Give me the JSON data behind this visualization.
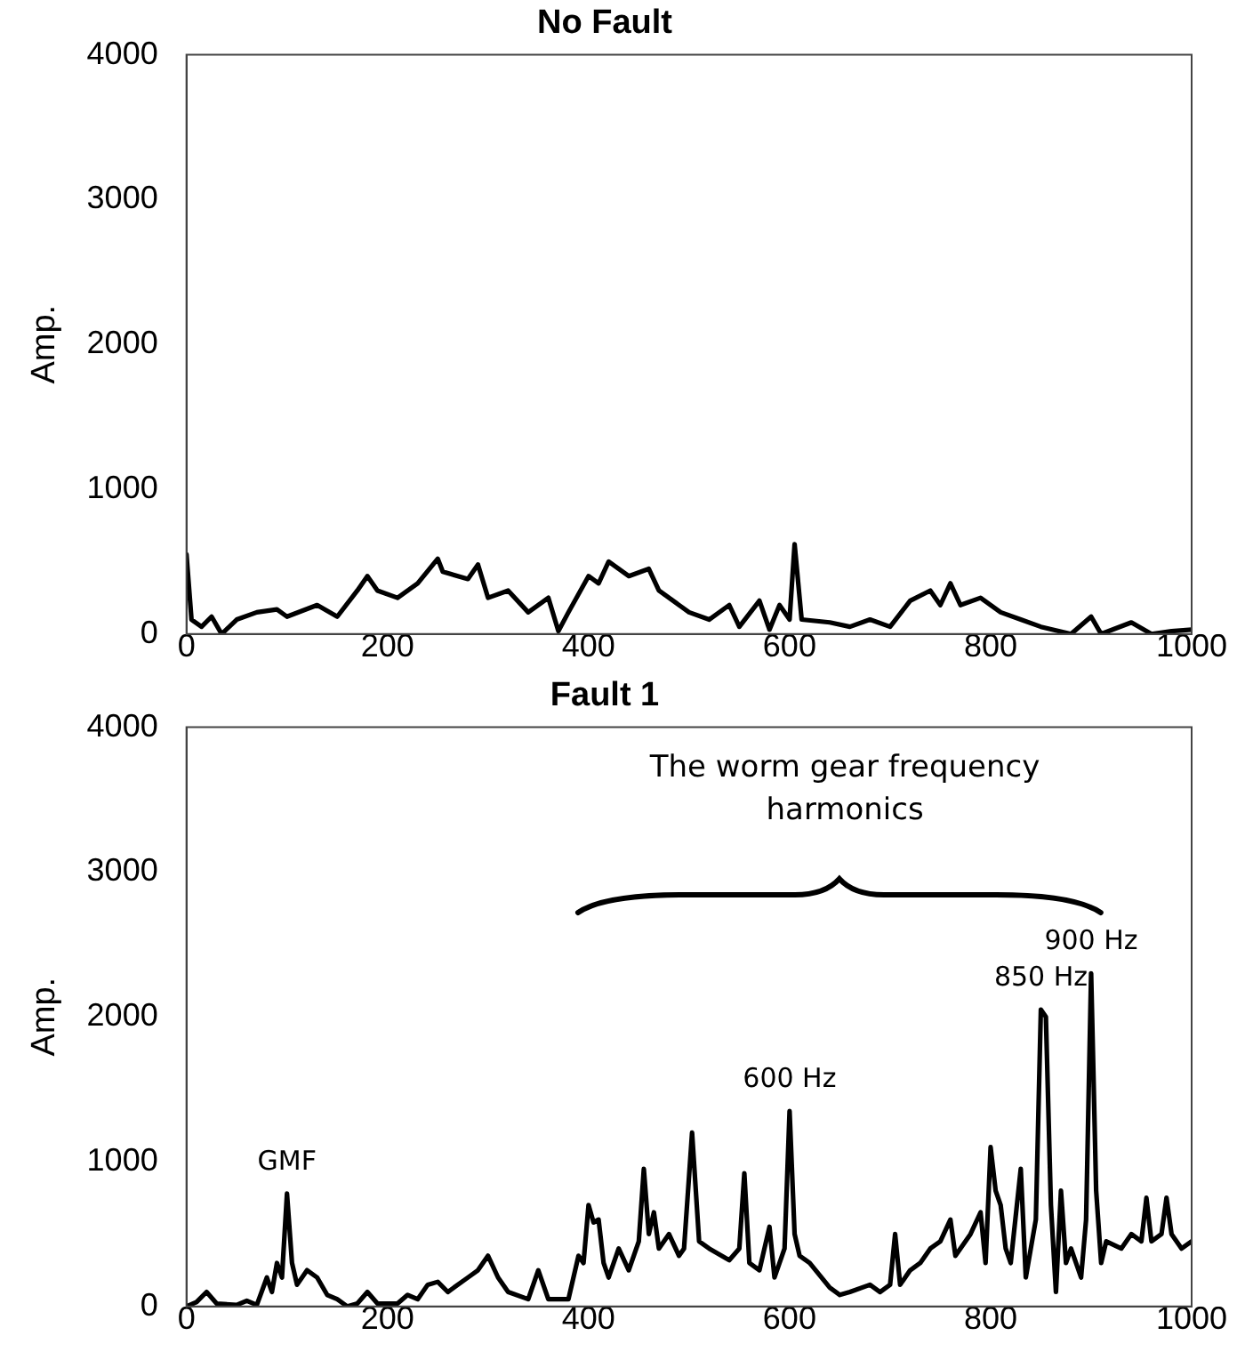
{
  "chart_data": [
    {
      "type": "line",
      "title": "No Fault",
      "ylabel": "Amp.",
      "xlim": [
        0,
        1000
      ],
      "xticks": [
        0,
        200,
        400,
        600,
        800,
        1000
      ],
      "ylim": [
        0,
        4000
      ],
      "yticks": [
        0,
        1000,
        2000,
        3000,
        4000
      ],
      "grid": false,
      "legend": false,
      "marker": "none",
      "line_style": "solid",
      "series": [
        {
          "color": "#000000",
          "x": [
            0,
            5,
            15,
            25,
            35,
            50,
            70,
            90,
            100,
            130,
            150,
            170,
            180,
            190,
            210,
            230,
            250,
            255,
            280,
            290,
            300,
            320,
            340,
            360,
            370,
            380,
            400,
            410,
            420,
            440,
            460,
            470,
            500,
            520,
            540,
            550,
            570,
            580,
            590,
            600,
            605,
            612,
            640,
            660,
            680,
            700,
            720,
            740,
            750,
            760,
            770,
            790,
            810,
            830,
            850,
            880,
            900,
            910,
            940,
            960,
            980,
            1000
          ],
          "values": [
            550,
            100,
            50,
            120,
            0,
            100,
            150,
            170,
            120,
            200,
            120,
            300,
            400,
            300,
            250,
            350,
            520,
            430,
            380,
            480,
            250,
            300,
            150,
            250,
            20,
            150,
            400,
            350,
            500,
            400,
            450,
            300,
            150,
            100,
            200,
            50,
            230,
            30,
            200,
            100,
            620,
            100,
            80,
            50,
            100,
            50,
            230,
            300,
            200,
            350,
            200,
            250,
            150,
            100,
            50,
            0,
            120,
            0,
            80,
            0,
            20,
            30
          ]
        }
      ]
    },
    {
      "type": "line",
      "title": "Fault 1",
      "ylabel": "Amp.",
      "xlim": [
        0,
        1000
      ],
      "xticks": [
        0,
        200,
        400,
        600,
        800,
        1000
      ],
      "ylim": [
        0,
        4000
      ],
      "yticks": [
        0,
        1000,
        2000,
        3000,
        4000
      ],
      "grid": false,
      "legend": false,
      "marker": "none",
      "line_style": "solid",
      "annotations": [
        "The worm gear frequency harmonics",
        {
          "text": "GMF",
          "x": 100,
          "y": 780
        },
        {
          "text": "600 Hz",
          "x": 600,
          "y": 1350
        },
        {
          "text": "850 Hz",
          "x": 850,
          "y": 2050
        },
        {
          "text": "900 Hz",
          "x": 900,
          "y": 2300
        }
      ],
      "series": [
        {
          "color": "#000000",
          "x": [
            0,
            10,
            20,
            30,
            50,
            60,
            70,
            80,
            85,
            90,
            95,
            100,
            105,
            110,
            120,
            130,
            140,
            150,
            160,
            170,
            180,
            190,
            210,
            220,
            230,
            240,
            250,
            260,
            280,
            290,
            300,
            310,
            320,
            340,
            350,
            360,
            380,
            390,
            395,
            400,
            405,
            410,
            415,
            420,
            430,
            440,
            450,
            455,
            460,
            465,
            470,
            480,
            490,
            495,
            503,
            510,
            520,
            540,
            550,
            555,
            560,
            570,
            580,
            585,
            595,
            600,
            605,
            610,
            620,
            640,
            650,
            660,
            680,
            690,
            700,
            705,
            710,
            720,
            730,
            740,
            750,
            760,
            765,
            780,
            790,
            795,
            800,
            805,
            810,
            815,
            820,
            830,
            835,
            840,
            845,
            850,
            855,
            860,
            865,
            870,
            875,
            880,
            890,
            895,
            900,
            905,
            910,
            915,
            930,
            940,
            950,
            955,
            960,
            970,
            975,
            980,
            990,
            1000
          ],
          "values": [
            0,
            30,
            100,
            20,
            10,
            40,
            10,
            200,
            100,
            300,
            200,
            780,
            300,
            150,
            250,
            200,
            80,
            50,
            0,
            20,
            100,
            20,
            20,
            80,
            50,
            150,
            170,
            100,
            200,
            250,
            350,
            200,
            100,
            50,
            250,
            50,
            50,
            350,
            300,
            700,
            580,
            600,
            300,
            200,
            400,
            250,
            450,
            950,
            500,
            650,
            400,
            500,
            350,
            400,
            1200,
            450,
            400,
            320,
            400,
            920,
            300,
            250,
            550,
            200,
            400,
            1350,
            500,
            350,
            300,
            130,
            80,
            100,
            150,
            100,
            150,
            500,
            150,
            250,
            300,
            400,
            450,
            600,
            350,
            500,
            650,
            300,
            1100,
            800,
            700,
            400,
            300,
            950,
            200,
            400,
            600,
            2050,
            2000,
            700,
            100,
            800,
            300,
            400,
            200,
            600,
            2300,
            800,
            300,
            450,
            400,
            500,
            450,
            750,
            450,
            500,
            750,
            500,
            400,
            450
          ]
        }
      ]
    }
  ]
}
